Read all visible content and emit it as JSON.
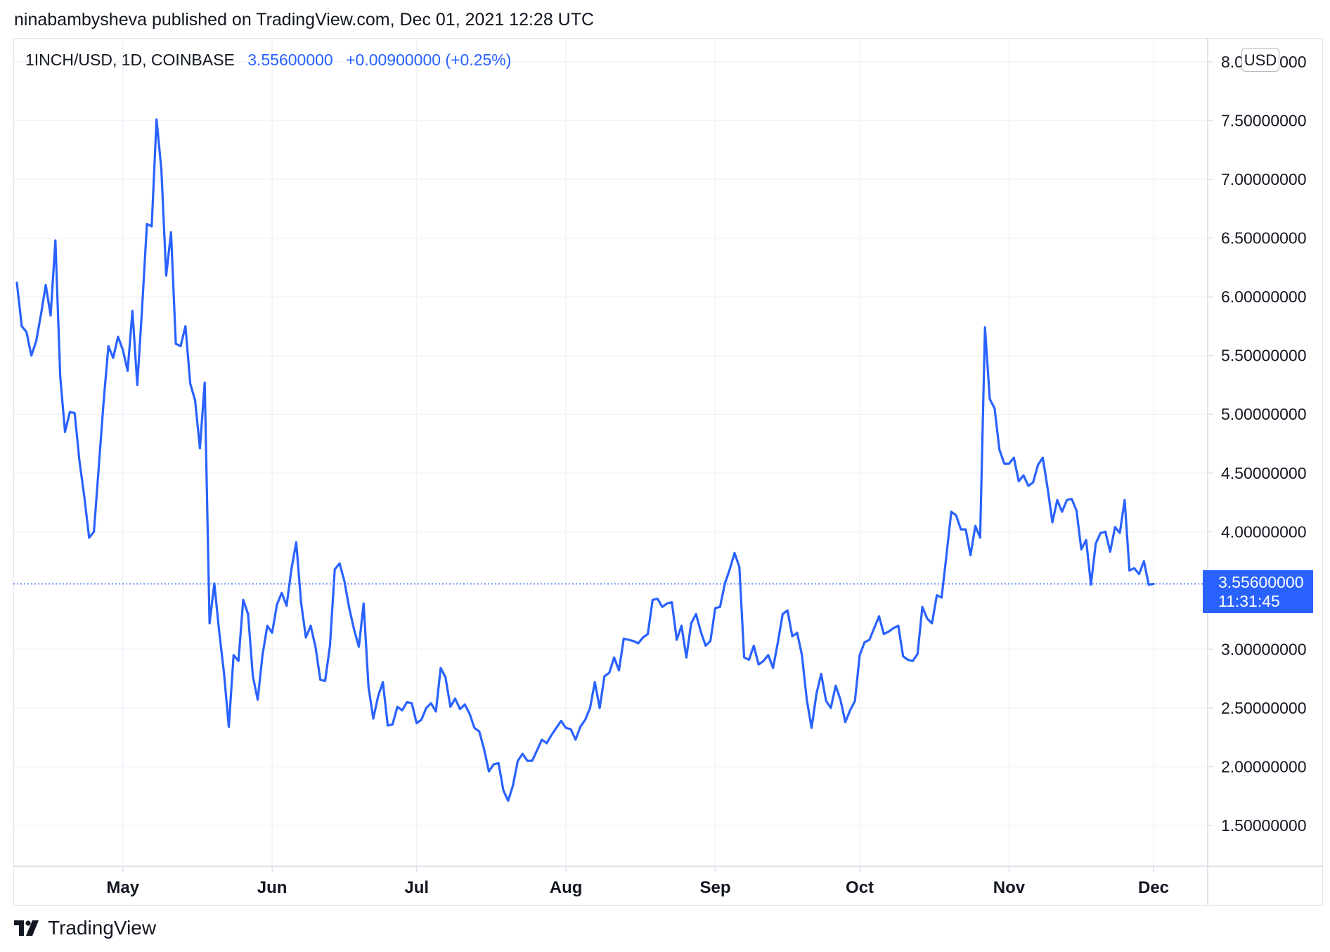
{
  "header": {
    "text": "ninabambysheva published on TradingView.com, Dec 01, 2021 12:28 UTC"
  },
  "legend": {
    "symbol": "1INCH/USD, 1D, COINBASE",
    "price": "3.55600000",
    "change": "+0.00900000 (+0.25%)"
  },
  "currency_label": "USD",
  "last_price": {
    "value_text": "3.55600000",
    "countdown": "11:31:45"
  },
  "brand": {
    "name": "TradingView"
  },
  "colors": {
    "line": "#2962ff",
    "grid": "#f0f3fa",
    "text": "#131722",
    "border": "#e0e3eb"
  },
  "chart_data": {
    "type": "line",
    "ylim": [
      1.1,
      8.1
    ],
    "xlim": [
      0,
      245
    ],
    "y_ticks": [
      {
        "value": 8.0,
        "label": "8.00000000"
      },
      {
        "value": 7.5,
        "label": "7.50000000"
      },
      {
        "value": 7.0,
        "label": "7.00000000"
      },
      {
        "value": 6.5,
        "label": "6.50000000"
      },
      {
        "value": 6.0,
        "label": "6.00000000"
      },
      {
        "value": 5.5,
        "label": "5.50000000"
      },
      {
        "value": 5.0,
        "label": "5.00000000"
      },
      {
        "value": 4.5,
        "label": "4.50000000"
      },
      {
        "value": 4.0,
        "label": "4.00000000"
      },
      {
        "value": 3.0,
        "label": "3.00000000"
      },
      {
        "value": 2.5,
        "label": "2.50000000"
      },
      {
        "value": 2.0,
        "label": "2.00000000"
      },
      {
        "value": 1.5,
        "label": "1.50000000"
      }
    ],
    "x_ticks": [
      {
        "day": 22,
        "label": "May"
      },
      {
        "day": 53,
        "label": "Jun"
      },
      {
        "day": 83,
        "label": "Jul"
      },
      {
        "day": 114,
        "label": "Aug"
      },
      {
        "day": 145,
        "label": "Sep"
      },
      {
        "day": 175,
        "label": "Oct"
      },
      {
        "day": 206,
        "label": "Nov"
      },
      {
        "day": 236,
        "label": "Dec"
      }
    ],
    "last_value": 3.556,
    "series": [
      {
        "points": [
          [
            0,
            6.12
          ],
          [
            1,
            5.75
          ],
          [
            2,
            5.7
          ],
          [
            3,
            5.5
          ],
          [
            4,
            5.62
          ],
          [
            5,
            5.85
          ],
          [
            6,
            6.1
          ],
          [
            7,
            5.84
          ],
          [
            8,
            6.48
          ],
          [
            9,
            5.32
          ],
          [
            10,
            4.85
          ],
          [
            11,
            5.02
          ],
          [
            12,
            5.01
          ],
          [
            13,
            4.6
          ],
          [
            14,
            4.3
          ],
          [
            15,
            3.95
          ],
          [
            16,
            4.0
          ],
          [
            17,
            4.55
          ],
          [
            18,
            5.1
          ],
          [
            19,
            5.58
          ],
          [
            20,
            5.48
          ],
          [
            21,
            5.66
          ],
          [
            22,
            5.55
          ],
          [
            23,
            5.37
          ],
          [
            24,
            5.88
          ],
          [
            25,
            5.25
          ],
          [
            26,
            5.9
          ],
          [
            27,
            6.62
          ],
          [
            28,
            6.6
          ],
          [
            29,
            7.51
          ],
          [
            30,
            7.08
          ],
          [
            31,
            6.18
          ],
          [
            32,
            6.55
          ],
          [
            33,
            5.6
          ],
          [
            34,
            5.58
          ],
          [
            35,
            5.75
          ],
          [
            36,
            5.26
          ],
          [
            37,
            5.12
          ],
          [
            38,
            4.71
          ],
          [
            39,
            5.27
          ],
          [
            40,
            3.22
          ],
          [
            41,
            3.56
          ],
          [
            42,
            3.15
          ],
          [
            43,
            2.8
          ],
          [
            44,
            2.34
          ],
          [
            45,
            2.95
          ],
          [
            46,
            2.9
          ],
          [
            47,
            3.42
          ],
          [
            48,
            3.3
          ],
          [
            49,
            2.77
          ],
          [
            50,
            2.57
          ],
          [
            51,
            2.95
          ],
          [
            52,
            3.2
          ],
          [
            53,
            3.14
          ],
          [
            54,
            3.38
          ],
          [
            55,
            3.48
          ],
          [
            56,
            3.37
          ],
          [
            57,
            3.68
          ],
          [
            58,
            3.91
          ],
          [
            59,
            3.4
          ],
          [
            60,
            3.1
          ],
          [
            61,
            3.2
          ],
          [
            62,
            3.02
          ],
          [
            63,
            2.74
          ],
          [
            64,
            2.73
          ],
          [
            65,
            3.03
          ],
          [
            66,
            3.68
          ],
          [
            67,
            3.73
          ],
          [
            68,
            3.58
          ],
          [
            69,
            3.35
          ],
          [
            70,
            3.17
          ],
          [
            71,
            3.02
          ],
          [
            72,
            3.39
          ],
          [
            73,
            2.68
          ],
          [
            74,
            2.41
          ],
          [
            75,
            2.6
          ],
          [
            76,
            2.72
          ],
          [
            77,
            2.35
          ],
          [
            78,
            2.36
          ],
          [
            79,
            2.51
          ],
          [
            80,
            2.48
          ],
          [
            81,
            2.55
          ],
          [
            82,
            2.54
          ],
          [
            83,
            2.37
          ],
          [
            84,
            2.4
          ],
          [
            85,
            2.5
          ],
          [
            86,
            2.54
          ],
          [
            87,
            2.47
          ],
          [
            88,
            2.84
          ],
          [
            89,
            2.76
          ],
          [
            90,
            2.51
          ],
          [
            91,
            2.58
          ],
          [
            92,
            2.49
          ],
          [
            93,
            2.53
          ],
          [
            94,
            2.45
          ],
          [
            95,
            2.33
          ],
          [
            96,
            2.3
          ],
          [
            97,
            2.15
          ],
          [
            98,
            1.96
          ],
          [
            99,
            2.02
          ],
          [
            100,
            2.03
          ],
          [
            101,
            1.8
          ],
          [
            102,
            1.71
          ],
          [
            103,
            1.84
          ],
          [
            104,
            2.05
          ],
          [
            105,
            2.11
          ],
          [
            106,
            2.05
          ],
          [
            107,
            2.05
          ],
          [
            108,
            2.14
          ],
          [
            109,
            2.23
          ],
          [
            110,
            2.2
          ],
          [
            111,
            2.27
          ],
          [
            112,
            2.33
          ],
          [
            113,
            2.39
          ],
          [
            114,
            2.33
          ],
          [
            115,
            2.32
          ],
          [
            116,
            2.23
          ],
          [
            117,
            2.34
          ],
          [
            118,
            2.4
          ],
          [
            119,
            2.5
          ],
          [
            120,
            2.72
          ],
          [
            121,
            2.5
          ],
          [
            122,
            2.77
          ],
          [
            123,
            2.8
          ],
          [
            124,
            2.93
          ],
          [
            125,
            2.82
          ],
          [
            126,
            3.09
          ],
          [
            127,
            3.08
          ],
          [
            128,
            3.07
          ],
          [
            129,
            3.05
          ],
          [
            130,
            3.1
          ],
          [
            131,
            3.13
          ],
          [
            132,
            3.42
          ],
          [
            133,
            3.43
          ],
          [
            134,
            3.36
          ],
          [
            135,
            3.39
          ],
          [
            136,
            3.4
          ],
          [
            137,
            3.08
          ],
          [
            138,
            3.2
          ],
          [
            139,
            2.93
          ],
          [
            140,
            3.22
          ],
          [
            141,
            3.3
          ],
          [
            142,
            3.15
          ],
          [
            143,
            3.03
          ],
          [
            144,
            3.07
          ],
          [
            145,
            3.35
          ],
          [
            146,
            3.36
          ],
          [
            147,
            3.56
          ],
          [
            148,
            3.68
          ],
          [
            149,
            3.82
          ],
          [
            150,
            3.7
          ],
          [
            151,
            2.93
          ],
          [
            152,
            2.91
          ],
          [
            153,
            3.03
          ],
          [
            154,
            2.87
          ],
          [
            155,
            2.9
          ],
          [
            156,
            2.95
          ],
          [
            157,
            2.84
          ],
          [
            158,
            3.06
          ],
          [
            159,
            3.3
          ],
          [
            160,
            3.33
          ],
          [
            161,
            3.11
          ],
          [
            162,
            3.14
          ],
          [
            163,
            2.95
          ],
          [
            164,
            2.57
          ],
          [
            165,
            2.33
          ],
          [
            166,
            2.62
          ],
          [
            167,
            2.79
          ],
          [
            168,
            2.56
          ],
          [
            169,
            2.5
          ],
          [
            170,
            2.69
          ],
          [
            171,
            2.57
          ],
          [
            172,
            2.38
          ],
          [
            173,
            2.48
          ],
          [
            174,
            2.56
          ],
          [
            175,
            2.95
          ],
          [
            176,
            3.06
          ],
          [
            177,
            3.08
          ],
          [
            178,
            3.18
          ],
          [
            179,
            3.28
          ],
          [
            180,
            3.13
          ],
          [
            181,
            3.15
          ],
          [
            182,
            3.18
          ],
          [
            183,
            3.2
          ],
          [
            184,
            2.94
          ],
          [
            185,
            2.91
          ],
          [
            186,
            2.9
          ],
          [
            187,
            2.96
          ],
          [
            188,
            3.36
          ],
          [
            189,
            3.26
          ],
          [
            190,
            3.22
          ],
          [
            191,
            3.46
          ],
          [
            192,
            3.44
          ],
          [
            193,
            3.8
          ],
          [
            194,
            4.17
          ],
          [
            195,
            4.14
          ],
          [
            196,
            4.02
          ],
          [
            197,
            4.02
          ],
          [
            198,
            3.8
          ],
          [
            199,
            4.05
          ],
          [
            200,
            3.95
          ],
          [
            201,
            5.74
          ],
          [
            202,
            5.13
          ],
          [
            203,
            5.05
          ],
          [
            204,
            4.7
          ],
          [
            205,
            4.58
          ],
          [
            206,
            4.58
          ],
          [
            207,
            4.63
          ],
          [
            208,
            4.43
          ],
          [
            209,
            4.48
          ],
          [
            210,
            4.39
          ],
          [
            211,
            4.42
          ],
          [
            212,
            4.57
          ],
          [
            213,
            4.63
          ],
          [
            214,
            4.37
          ],
          [
            215,
            4.08
          ],
          [
            216,
            4.27
          ],
          [
            217,
            4.17
          ],
          [
            218,
            4.27
          ],
          [
            219,
            4.28
          ],
          [
            220,
            4.18
          ],
          [
            221,
            3.85
          ],
          [
            222,
            3.93
          ],
          [
            223,
            3.55
          ],
          [
            224,
            3.9
          ],
          [
            225,
            3.99
          ],
          [
            226,
            4.0
          ],
          [
            227,
            3.83
          ],
          [
            228,
            4.04
          ],
          [
            229,
            3.99
          ],
          [
            230,
            4.27
          ],
          [
            231,
            3.67
          ],
          [
            232,
            3.69
          ],
          [
            233,
            3.64
          ],
          [
            234,
            3.75
          ],
          [
            235,
            3.55
          ],
          [
            236,
            3.556
          ]
        ]
      }
    ]
  }
}
